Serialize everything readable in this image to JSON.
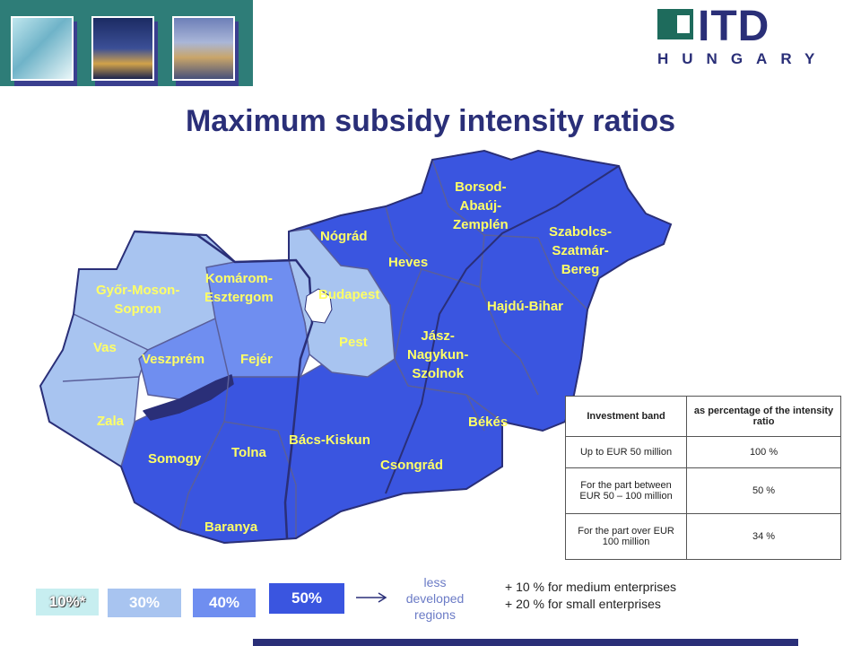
{
  "header": {
    "photos": [
      "dna-helix-photo",
      "parliament-photo",
      "chain-bridge-photo"
    ],
    "logo": {
      "mark": "ITD",
      "sub": "HUNGARY"
    }
  },
  "title": "Maximum subsidy intensity ratios",
  "map": {
    "counties": [
      {
        "id": "borsod",
        "label": "Borsod-\nAbaúj-\nZemplén"
      },
      {
        "id": "szabolcs",
        "label": "Szabolcs-\nSzatmár-\nBereg"
      },
      {
        "id": "nograd",
        "label": "Nógrád"
      },
      {
        "id": "heves",
        "label": "Heves"
      },
      {
        "id": "hajdu",
        "label": "Hajdú-Bihar"
      },
      {
        "id": "gyor",
        "label": "Győr-Moson-\nSopron"
      },
      {
        "id": "komarom",
        "label": "Komárom-\nEsztergom"
      },
      {
        "id": "budapest",
        "label": "Budapest"
      },
      {
        "id": "pest",
        "label": "Pest"
      },
      {
        "id": "jasz",
        "label": "Jász-\nNagykun-\nSzolnok"
      },
      {
        "id": "vas",
        "label": "Vas"
      },
      {
        "id": "veszprem",
        "label": "Veszprém"
      },
      {
        "id": "fejer",
        "label": "Fejér"
      },
      {
        "id": "zala",
        "label": "Zala"
      },
      {
        "id": "bekes",
        "label": "Békés"
      },
      {
        "id": "bacs",
        "label": "Bács-Kiskun"
      },
      {
        "id": "somogy",
        "label": "Somogy"
      },
      {
        "id": "tolna",
        "label": "Tolna"
      },
      {
        "id": "csongrad",
        "label": "Csongrád"
      },
      {
        "id": "baranya",
        "label": "Baranya"
      }
    ],
    "colors": {
      "dark": "#3a55e0",
      "medium": "#6f8ef0",
      "light": "#a8c4f0",
      "lake": "#2a2f78",
      "border": "#5a5f9a"
    }
  },
  "table": {
    "headers": [
      "Investment band",
      "as percentage  of the intensity ratio"
    ],
    "rows": [
      [
        "Up to EUR 50 million",
        "100  %"
      ],
      [
        "For the part between EUR 50 – 100 million",
        "50 %"
      ],
      [
        "For the part over EUR 100 million",
        "34 %"
      ]
    ]
  },
  "legend": {
    "items": [
      {
        "label": "10%*",
        "color": "#c7eef0"
      },
      {
        "label": "30%",
        "color": "#a8c4f0"
      },
      {
        "label": "40%",
        "color": "#6f8ef0"
      },
      {
        "label": "50%",
        "color": "#3a55e0"
      }
    ],
    "arrow_note": "less\ndeveloped\nregions"
  },
  "bonuses": [
    "+ 10 % for medium enterprises",
    "+ 20 % for small enterprises"
  ]
}
